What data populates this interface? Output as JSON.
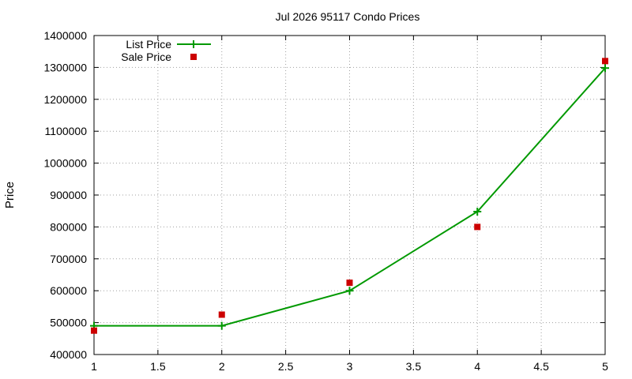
{
  "chart_data": {
    "type": "line",
    "title": "Jul 2026 95117 Condo Prices",
    "xlabel": "",
    "ylabel": "Price",
    "xlim": [
      1,
      5
    ],
    "ylim": [
      400000,
      1400000
    ],
    "x_ticks": [
      "1",
      "1.5",
      "2",
      "2.5",
      "3",
      "3.5",
      "4",
      "4.5",
      "5"
    ],
    "y_ticks": [
      "400000",
      "500000",
      "600000",
      "700000",
      "800000",
      "900000",
      "1000000",
      "1100000",
      "1200000",
      "1300000",
      "1400000"
    ],
    "grid": true,
    "legend_position": "top-left",
    "series": [
      {
        "name": "List Price",
        "style": "line-with-plus-markers",
        "color": "#009900",
        "x": [
          1,
          2,
          3,
          4,
          5
        ],
        "y": [
          490000,
          490000,
          600000,
          848000,
          1298000
        ]
      },
      {
        "name": "Sale Price",
        "style": "square-markers",
        "color": "#cc0000",
        "x": [
          1,
          2,
          3,
          4,
          5
        ],
        "y": [
          475000,
          525000,
          625000,
          800000,
          1320000
        ]
      }
    ]
  }
}
